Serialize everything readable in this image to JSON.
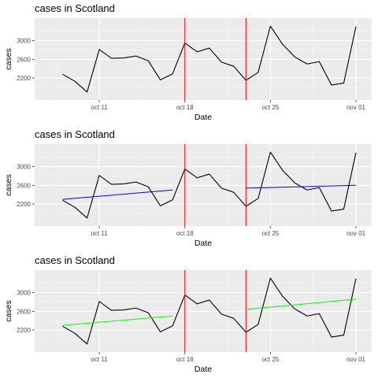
{
  "chart_data": [
    {
      "type": "line",
      "title": "cases in Scotland",
      "xlabel": "Date",
      "ylabel": "cases",
      "x_ticks": [
        "2020-10-11",
        "2020-10-18",
        "2020-10-25",
        "2020-11-01"
      ],
      "x_tick_labels": [
        "oct 11",
        "oct 18",
        "oct 25",
        "nov 01"
      ],
      "y_ticks": [
        2200,
        2600,
        3000
      ],
      "y_tick_labels": [
        "2200",
        "2600",
        "3000"
      ],
      "xlim": [
        "2020-10-07",
        "2020-11-01"
      ],
      "ylim": [
        1830,
        3380
      ],
      "grid": true,
      "series": [
        {
          "color": "#000000",
          "x": [
            "2020-10-08",
            "2020-10-09",
            "2020-10-10",
            "2020-10-11",
            "2020-10-12",
            "2020-10-13",
            "2020-10-14",
            "2020-10-15",
            "2020-10-16",
            "2020-10-17",
            "2020-10-18",
            "2020-10-19",
            "2020-10-20",
            "2020-10-21",
            "2020-10-22",
            "2020-10-23",
            "2020-10-24",
            "2020-10-25",
            "2020-10-26",
            "2020-10-27",
            "2020-10-28",
            "2020-10-29",
            "2020-10-30",
            "2020-10-31",
            "2020-11-01"
          ],
          "values": [
            2280,
            2130,
            1900,
            2810,
            2620,
            2630,
            2670,
            2570,
            2160,
            2290,
            2950,
            2760,
            2840,
            2540,
            2450,
            2150,
            2320,
            3310,
            2920,
            2650,
            2500,
            2550,
            2050,
            2090,
            3300
          ]
        }
      ],
      "vlines": [
        {
          "x": "2020-10-18",
          "color": "#ff0000"
        },
        {
          "x": "2020-10-23",
          "color": "#ff0000"
        }
      ],
      "trend_lines": []
    },
    {
      "type": "line",
      "title": "cases in Scotland",
      "xlabel": "Date",
      "ylabel": "cases",
      "x_ticks": [
        "2020-10-11",
        "2020-10-18",
        "2020-10-25",
        "2020-11-01"
      ],
      "x_tick_labels": [
        "oct 11",
        "oct 18",
        "oct 25",
        "nov 01"
      ],
      "y_ticks": [
        2200,
        2600,
        3000
      ],
      "y_tick_labels": [
        "2200",
        "2600",
        "3000"
      ],
      "xlim": [
        "2020-10-07",
        "2020-11-01"
      ],
      "ylim": [
        1830,
        3380
      ],
      "grid": true,
      "series": [
        {
          "color": "#000000",
          "x": [
            "2020-10-08",
            "2020-10-09",
            "2020-10-10",
            "2020-10-11",
            "2020-10-12",
            "2020-10-13",
            "2020-10-14",
            "2020-10-15",
            "2020-10-16",
            "2020-10-17",
            "2020-10-18",
            "2020-10-19",
            "2020-10-20",
            "2020-10-21",
            "2020-10-22",
            "2020-10-23",
            "2020-10-24",
            "2020-10-25",
            "2020-10-26",
            "2020-10-27",
            "2020-10-28",
            "2020-10-29",
            "2020-10-30",
            "2020-10-31",
            "2020-11-01"
          ],
          "values": [
            2280,
            2130,
            1900,
            2810,
            2620,
            2630,
            2670,
            2570,
            2160,
            2290,
            2950,
            2760,
            2840,
            2540,
            2450,
            2150,
            2320,
            3310,
            2920,
            2650,
            2500,
            2550,
            2050,
            2090,
            3300
          ]
        }
      ],
      "vlines": [
        {
          "x": "2020-10-18",
          "color": "#ff0000"
        },
        {
          "x": "2020-10-23",
          "color": "#ff0000"
        }
      ],
      "trend_lines": [
        {
          "x": [
            "2020-10-08",
            "2020-10-17"
          ],
          "values": [
            2300,
            2500
          ],
          "color": "#0000ff"
        },
        {
          "x": [
            "2020-10-23",
            "2020-11-01"
          ],
          "values": [
            2540,
            2600
          ],
          "color": "#0000ff"
        }
      ]
    },
    {
      "type": "line",
      "title": "cases in Scotland",
      "xlabel": "Date",
      "ylabel": "cases",
      "x_ticks": [
        "2020-10-11",
        "2020-10-18",
        "2020-10-25",
        "2020-11-01"
      ],
      "x_tick_labels": [
        "oct 11",
        "oct 18",
        "oct 25",
        "nov 01"
      ],
      "y_ticks": [
        2200,
        2600,
        3000
      ],
      "y_tick_labels": [
        "2200",
        "2600",
        "3000"
      ],
      "xlim": [
        "2020-10-07",
        "2020-11-01"
      ],
      "ylim": [
        1830,
        3380
      ],
      "grid": true,
      "series": [
        {
          "color": "#000000",
          "x": [
            "2020-10-08",
            "2020-10-09",
            "2020-10-10",
            "2020-10-11",
            "2020-10-12",
            "2020-10-13",
            "2020-10-14",
            "2020-10-15",
            "2020-10-16",
            "2020-10-17",
            "2020-10-18",
            "2020-10-19",
            "2020-10-20",
            "2020-10-21",
            "2020-10-22",
            "2020-10-23",
            "2020-10-24",
            "2020-10-25",
            "2020-10-26",
            "2020-10-27",
            "2020-10-28",
            "2020-10-29",
            "2020-10-30",
            "2020-10-31",
            "2020-11-01"
          ],
          "values": [
            2280,
            2130,
            1900,
            2810,
            2620,
            2630,
            2670,
            2570,
            2160,
            2290,
            2950,
            2760,
            2840,
            2540,
            2450,
            2150,
            2320,
            3310,
            2920,
            2650,
            2500,
            2550,
            2050,
            2090,
            3300
          ]
        }
      ],
      "vlines": [
        {
          "x": "2020-10-18",
          "color": "#ff0000"
        },
        {
          "x": "2020-10-23",
          "color": "#ff0000"
        }
      ],
      "trend_lines": [
        {
          "x": [
            "2020-10-08",
            "2020-10-17"
          ],
          "values": [
            2300,
            2500
          ],
          "color": "#00ff00"
        },
        {
          "x": [
            "2020-10-23",
            "2020-11-01"
          ],
          "values": [
            2640,
            2860
          ],
          "color": "#00ff00"
        }
      ]
    }
  ]
}
